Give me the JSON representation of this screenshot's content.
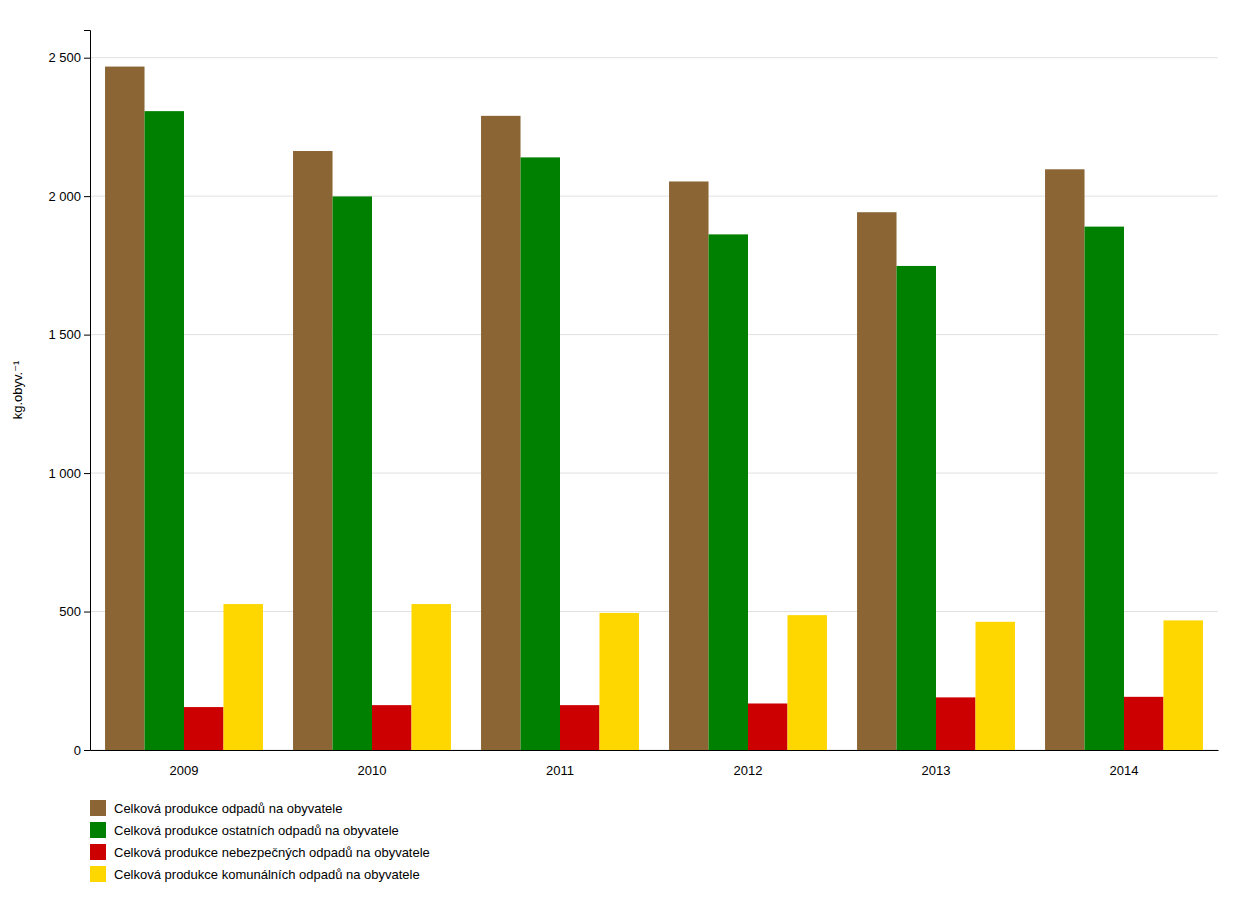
{
  "chart_data": {
    "type": "bar",
    "categories": [
      "2009",
      "2010",
      "2011",
      "2012",
      "2013",
      "2014"
    ],
    "series": [
      {
        "name": "Celková produkce odpadů na obyvatele",
        "color": "#8B6534",
        "values": [
          2468,
          2163,
          2290,
          2053,
          1942,
          2097
        ]
      },
      {
        "name": "Celková produkce ostatních odpadů na obyvatele",
        "color": "#008000",
        "values": [
          2307,
          1999,
          2140,
          1862,
          1748,
          1890
        ]
      },
      {
        "name": "Celková produkce nebezpečných odpadů na obyvatele",
        "color": "#CC0000",
        "values": [
          155,
          162,
          162,
          168,
          190,
          192
        ]
      },
      {
        "name": "Celková produkce komunálních odpadů na obyvatele",
        "color": "#FFD700",
        "values": [
          527,
          527,
          495,
          487,
          463,
          468
        ]
      }
    ],
    "ylabel": "kg.obyv.⁻¹",
    "ylim": [
      0,
      2600
    ],
    "yticks": [
      0,
      500,
      {
        "value": 1000,
        "label": "1 000"
      },
      {
        "value": 1500,
        "label": "1 500"
      },
      {
        "value": 2000,
        "label": "2 000"
      },
      {
        "value": 2500,
        "label": "2 500"
      }
    ],
    "grid": true,
    "legend": "bottom"
  }
}
